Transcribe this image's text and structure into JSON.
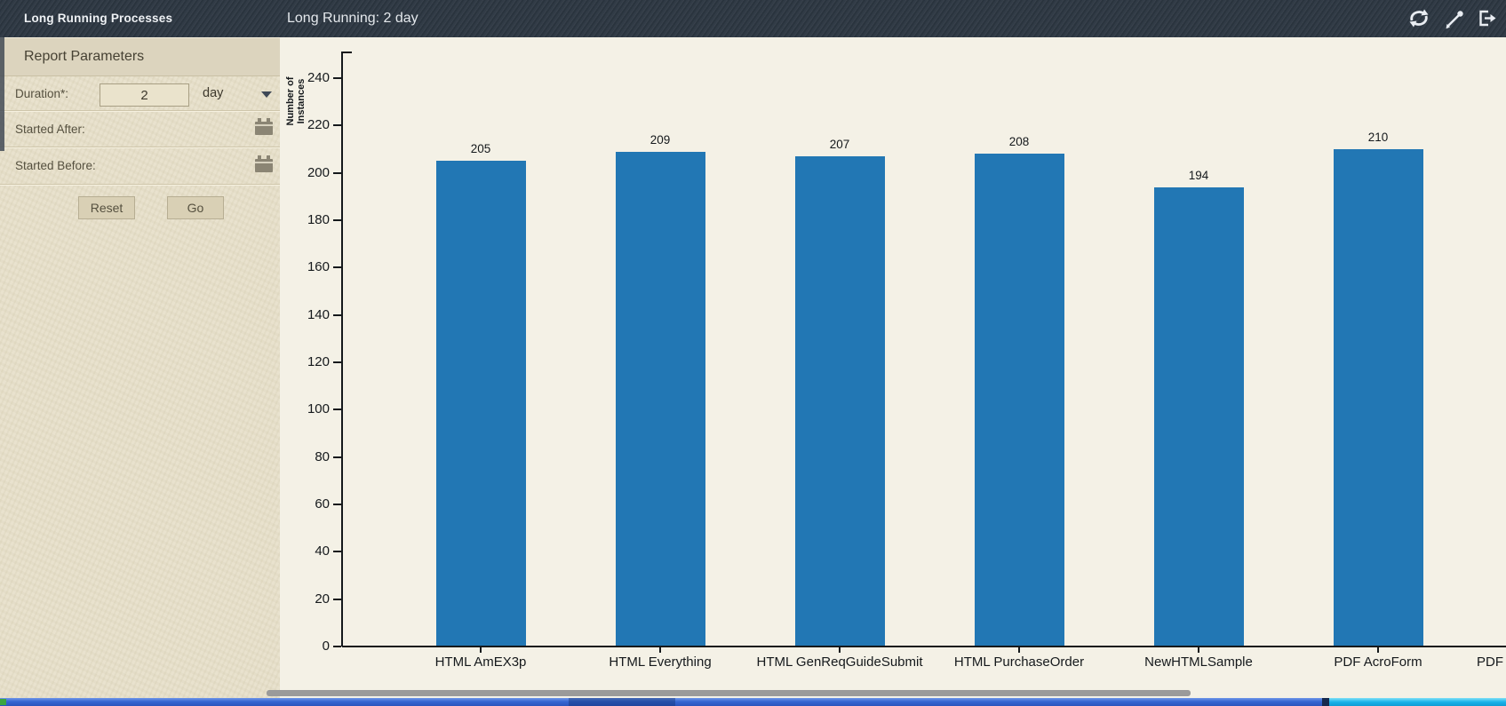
{
  "window": {
    "title_left": "Long Running Processes",
    "title_main": "Long Running: 2 day"
  },
  "header_icons": [
    {
      "name": "refresh-icon"
    },
    {
      "name": "eyedropper-icon"
    },
    {
      "name": "exit-icon"
    }
  ],
  "sidebar": {
    "panel_title": "Report Parameters",
    "fields": {
      "duration": {
        "label": "Duration*:",
        "value": "2",
        "unit": "day"
      },
      "started_after": {
        "label": "Started After:"
      },
      "started_before": {
        "label": "Started Before:"
      }
    },
    "buttons": {
      "reset": "Reset",
      "go": "Go"
    }
  },
  "chart_data": {
    "type": "bar",
    "title": "",
    "ylabel": "Number of Instances",
    "xlabel": "",
    "categories": [
      "HTML AmEX3p",
      "HTML Everything",
      "HTML GenReqGuideSubmit",
      "HTML PurchaseOrder",
      "NewHTMLSample",
      "PDF AcroForm"
    ],
    "values": [
      205,
      209,
      207,
      208,
      194,
      210
    ],
    "partial_next_category": "PDF",
    "ylim": [
      0,
      250
    ],
    "ytick_step": 20,
    "yticks": [
      0,
      20,
      40,
      60,
      80,
      100,
      120,
      140,
      160,
      180,
      200,
      220,
      240
    ],
    "bar_color": "#2277b4",
    "grid": false,
    "value_labels_shown": true,
    "legend": "none"
  },
  "colors": {
    "header_bg": "#2d3742",
    "sidebar_bg": "#e7e0ca",
    "chart_bg": "#f4f1e6",
    "bar_blue": "#2277b4",
    "scrollbar_thumb": "#9a9a9a",
    "taskbar_blue": "#3566d2",
    "taskbar_cyan": "#19b2e9"
  }
}
